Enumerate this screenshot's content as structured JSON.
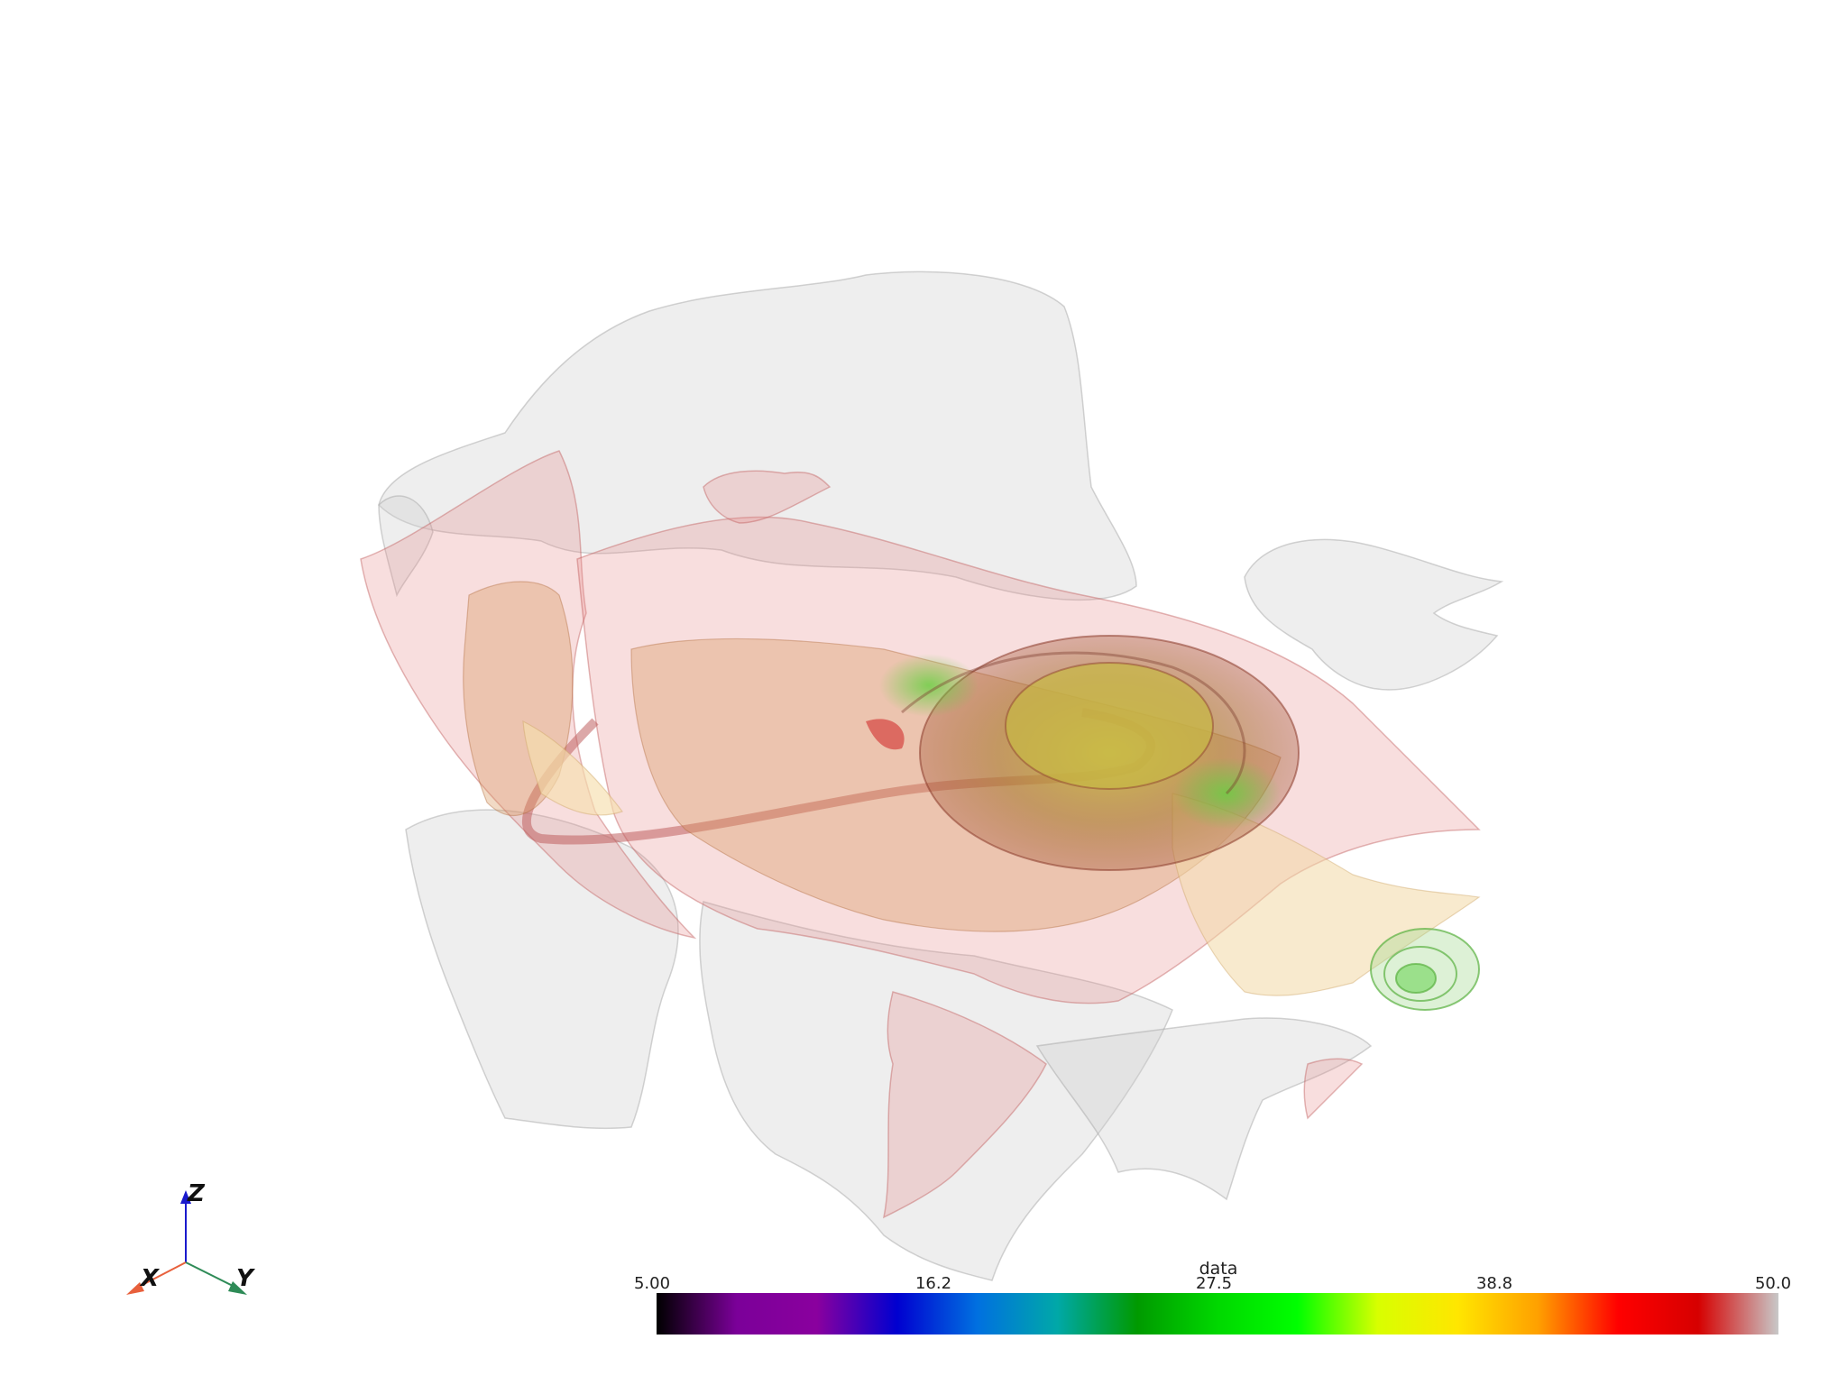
{
  "colorbar": {
    "title": "data",
    "ticks": [
      "5.00",
      "16.2",
      "27.5",
      "38.8",
      "50.0"
    ],
    "range": [
      5.0,
      50.0
    ],
    "colormap": [
      "#000000",
      "#7b0099",
      "#8a009e",
      "#0000d0",
      "#0070e0",
      "#00a8a8",
      "#009a00",
      "#00d800",
      "#00ff00",
      "#d8ff00",
      "#ffe600",
      "#ffa000",
      "#ff0000",
      "#d60000",
      "#c8c8c8"
    ]
  },
  "axes_widget": {
    "x_label": "X",
    "y_label": "Y",
    "z_label": "Z",
    "x_color": "#e8603c",
    "y_color": "#2e8b57",
    "z_color": "#1a1acd"
  },
  "scene": {
    "surface_colors": [
      "#c8c8c8",
      "#e89090",
      "#d89a60",
      "#b8a040",
      "#80c040"
    ]
  }
}
